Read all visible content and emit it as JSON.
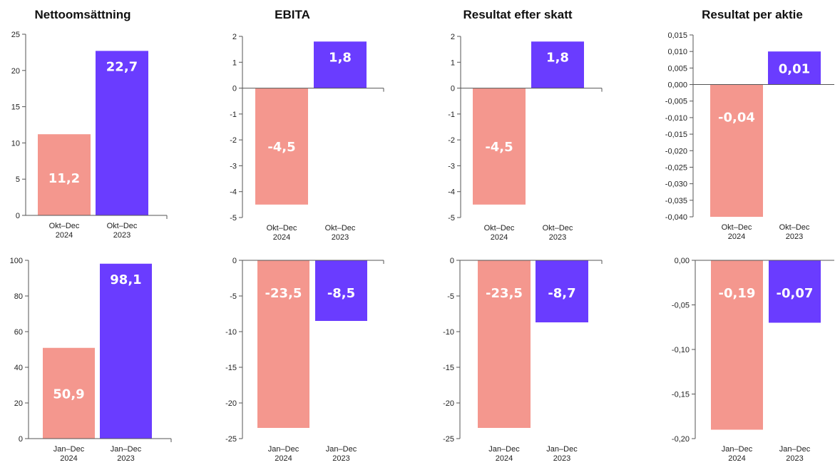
{
  "colors": {
    "y2024": "#f4978e",
    "y2023": "#6a3cff"
  },
  "chart_data": [
    {
      "type": "bar",
      "title": "Nettoomsättning",
      "categories": [
        "Okt–Dec\n2024",
        "Okt–Dec\n2023"
      ],
      "values": [
        11.2,
        22.7
      ],
      "value_labels": [
        "11,2",
        "22,7"
      ],
      "ylim": [
        0,
        25
      ],
      "ticks": [
        0,
        5,
        10,
        15,
        20,
        25
      ],
      "tick_labels": [
        "0",
        "5",
        "10",
        "15",
        "20",
        "25"
      ]
    },
    {
      "type": "bar",
      "title": "EBITA",
      "categories": [
        "Okt–Dec\n2024",
        "Okt–Dec\n2023"
      ],
      "values": [
        -4.5,
        1.8
      ],
      "value_labels": [
        "-4,5",
        "1,8"
      ],
      "ylim": [
        -5,
        2
      ],
      "ticks": [
        -5,
        -4,
        -3,
        -2,
        -1,
        0,
        1,
        2
      ],
      "tick_labels": [
        "-5",
        "-4",
        "-3",
        "-2",
        "-1",
        "0",
        "1",
        "2"
      ]
    },
    {
      "type": "bar",
      "title": "Resultat efter skatt",
      "categories": [
        "Okt–Dec\n2024",
        "Okt–Dec\n2023"
      ],
      "values": [
        -4.5,
        1.8
      ],
      "value_labels": [
        "-4,5",
        "1,8"
      ],
      "ylim": [
        -5,
        2
      ],
      "ticks": [
        -5,
        -4,
        -3,
        -2,
        -1,
        0,
        1,
        2
      ],
      "tick_labels": [
        "-5",
        "-4",
        "-3",
        "-2",
        "-1",
        "0",
        "1",
        "2"
      ]
    },
    {
      "type": "bar",
      "title": "Resultat per aktie",
      "categories": [
        "Okt–Dec\n2024",
        "Okt–Dec\n2023"
      ],
      "values": [
        -0.04,
        0.01
      ],
      "value_labels": [
        "-0,04",
        "0,01"
      ],
      "ylim": [
        -0.04,
        0.015
      ],
      "ticks": [
        -0.04,
        -0.035,
        -0.03,
        -0.025,
        -0.02,
        -0.015,
        -0.01,
        -0.005,
        0,
        0.005,
        0.01,
        0.015
      ],
      "tick_labels": [
        "-0,040",
        "-0,035",
        "-0,030",
        "-0,025",
        "-0,020",
        "-0,015",
        "-0,010",
        "-0,005",
        "0,000",
        "0,005",
        "0,010",
        "0,015"
      ]
    },
    {
      "type": "bar",
      "title": "",
      "categories": [
        "Jan–Dec\n2024",
        "Jan–Dec\n2023"
      ],
      "values": [
        50.9,
        98.1
      ],
      "value_labels": [
        "50,9",
        "98,1"
      ],
      "ylim": [
        0,
        100
      ],
      "ticks": [
        0,
        20,
        40,
        60,
        80,
        100
      ],
      "tick_labels": [
        "0",
        "20",
        "40",
        "60",
        "80",
        "100"
      ]
    },
    {
      "type": "bar",
      "title": "",
      "categories": [
        "Jan–Dec\n2024",
        "Jan–Dec\n2023"
      ],
      "values": [
        -23.5,
        -8.5
      ],
      "value_labels": [
        "-23,5",
        "-8,5"
      ],
      "ylim": [
        -25,
        0
      ],
      "ticks": [
        -25,
        -20,
        -15,
        -10,
        -5,
        0
      ],
      "tick_labels": [
        "-25",
        "-20",
        "-15",
        "-10",
        "-5",
        "0"
      ]
    },
    {
      "type": "bar",
      "title": "",
      "categories": [
        "Jan–Dec\n2024",
        "Jan–Dec\n2023"
      ],
      "values": [
        -23.5,
        -8.7
      ],
      "value_labels": [
        "-23,5",
        "-8,7"
      ],
      "ylim": [
        -25,
        0
      ],
      "ticks": [
        -25,
        -20,
        -15,
        -10,
        -5,
        0
      ],
      "tick_labels": [
        "-25",
        "-20",
        "-15",
        "-10",
        "-5",
        "0"
      ]
    },
    {
      "type": "bar",
      "title": "",
      "categories": [
        "Jan–Dec\n2024",
        "Jan–Dec\n2023"
      ],
      "values": [
        -0.19,
        -0.07
      ],
      "value_labels": [
        "-0,19",
        "-0,07"
      ],
      "ylim": [
        -0.2,
        0
      ],
      "ticks": [
        -0.2,
        -0.15,
        -0.1,
        -0.05,
        0
      ],
      "tick_labels": [
        "-0,20",
        "-0,15",
        "-0,10",
        "-0,05",
        "0,00"
      ]
    }
  ]
}
